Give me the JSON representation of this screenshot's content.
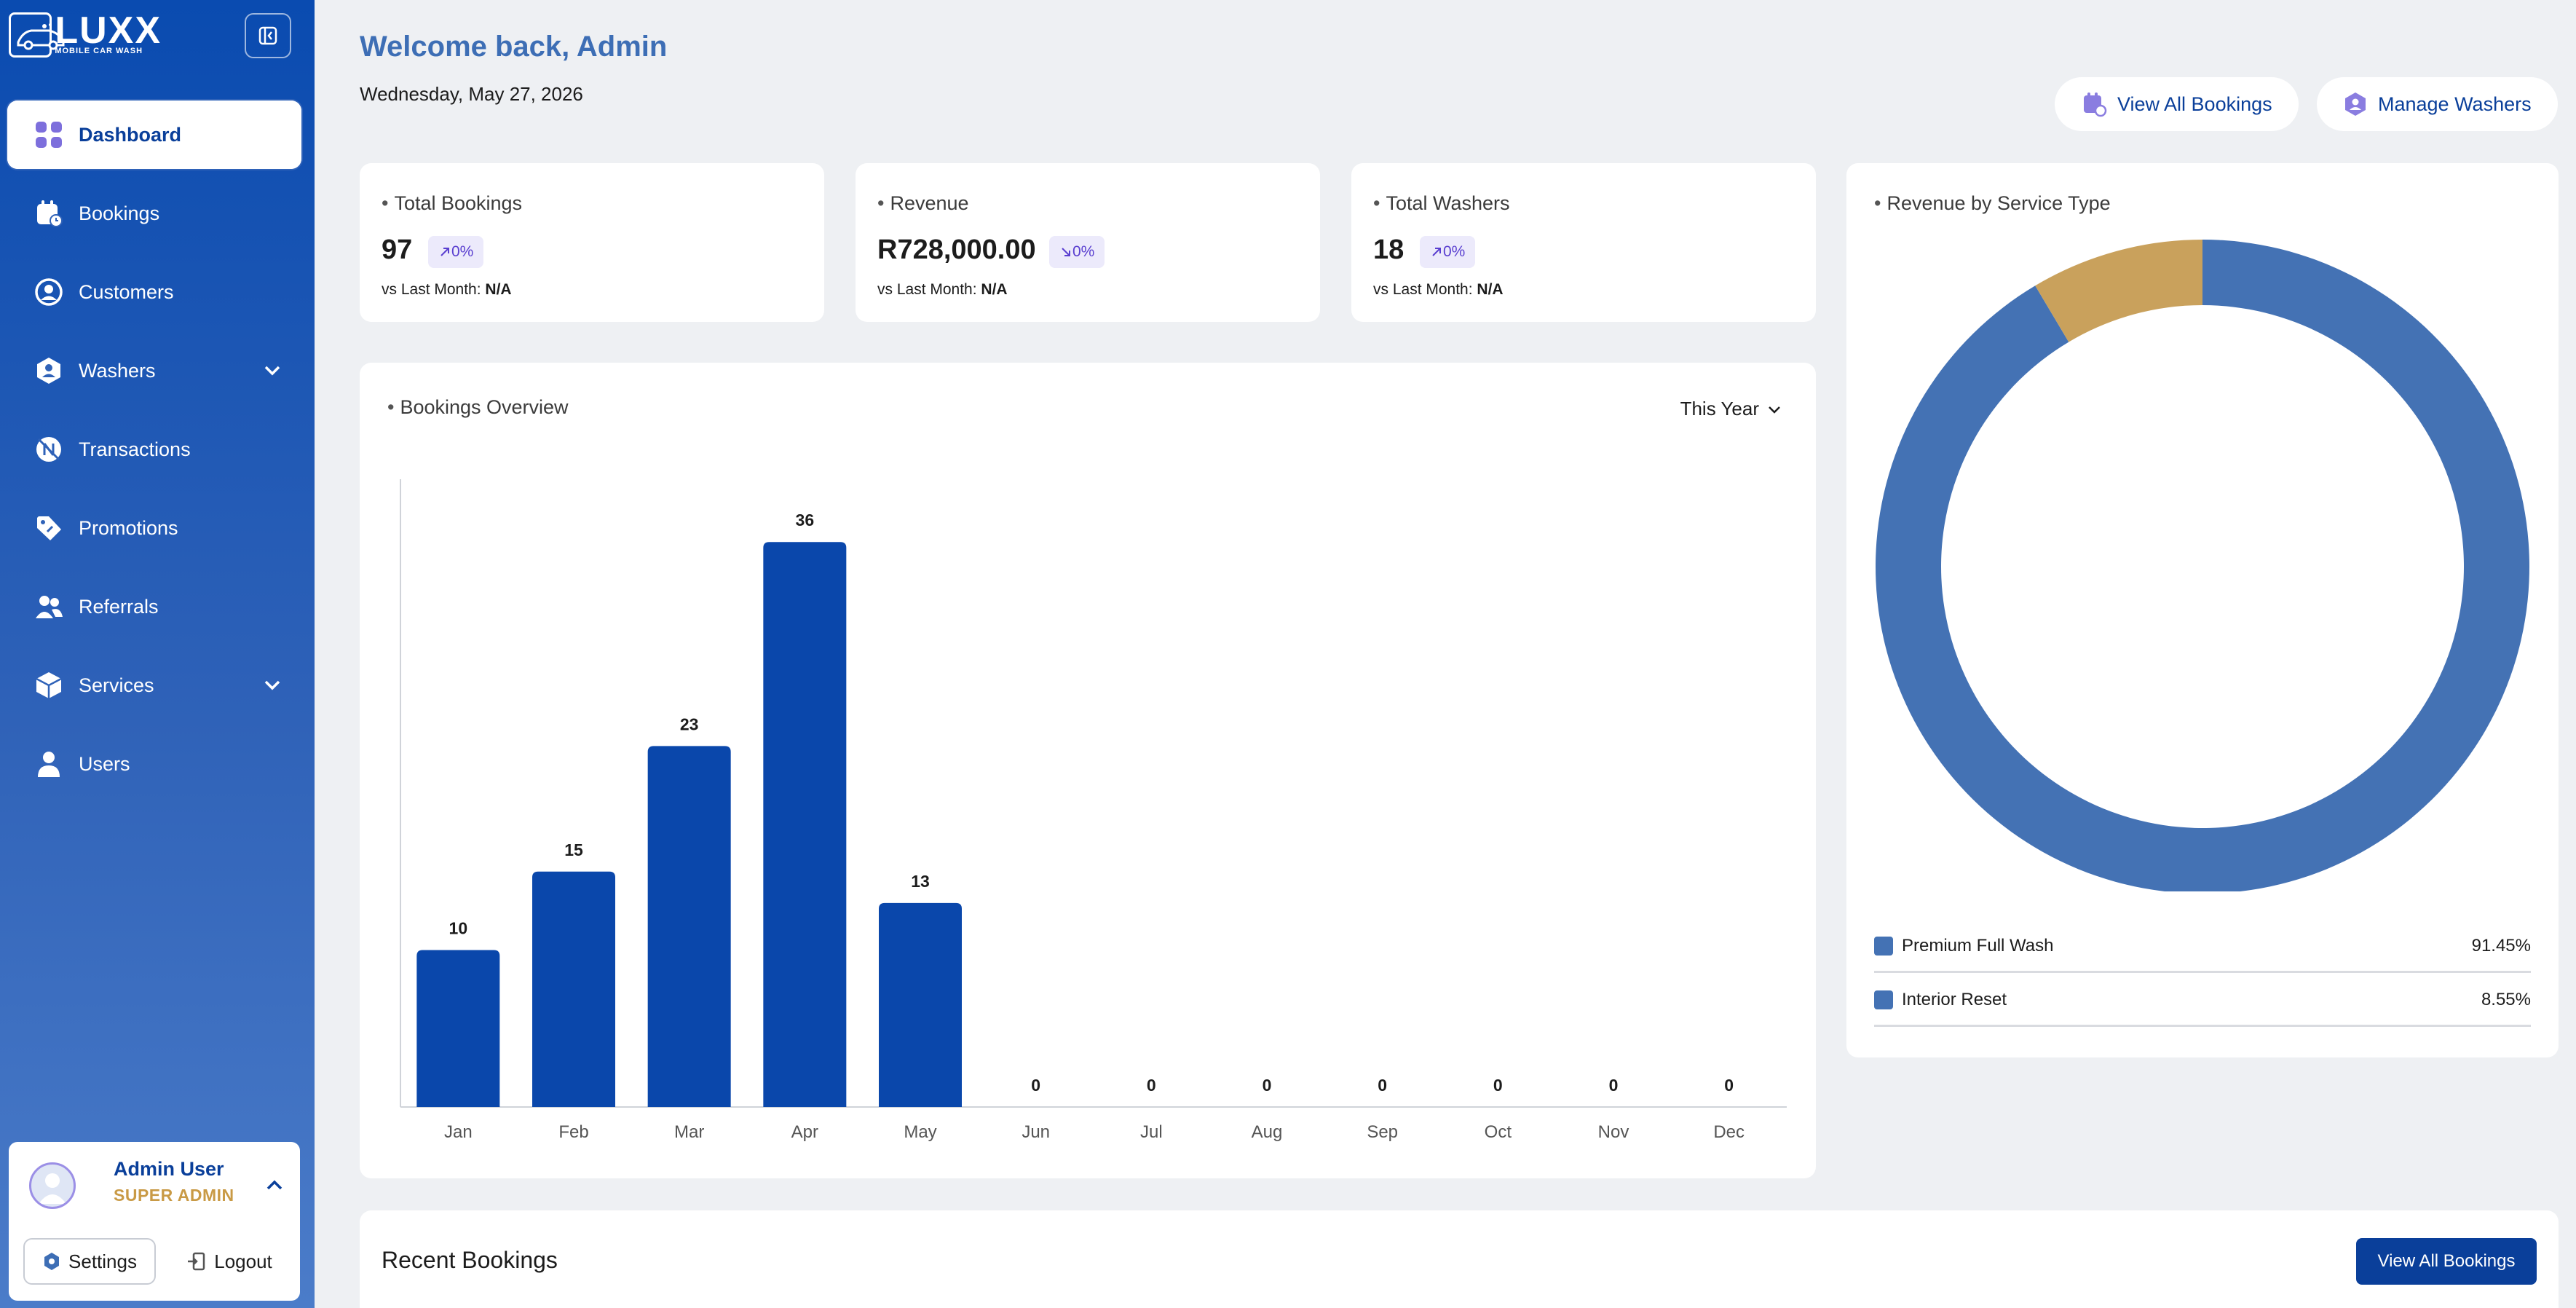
{
  "brand": {
    "logo_big": "LUXX",
    "logo_small": "MOBILE CAR WASH"
  },
  "sidebar": {
    "items": [
      {
        "label": "Dashboard",
        "icon": "dashboard-icon",
        "active": true
      },
      {
        "label": "Bookings",
        "icon": "calendar-icon"
      },
      {
        "label": "Customers",
        "icon": "user-circle-icon"
      },
      {
        "label": "Washers",
        "icon": "washer-badge-icon",
        "expandable": true
      },
      {
        "label": "Transactions",
        "icon": "transactions-icon"
      },
      {
        "label": "Promotions",
        "icon": "tag-icon"
      },
      {
        "label": "Referrals",
        "icon": "users-icon"
      },
      {
        "label": "Services",
        "icon": "box-icon",
        "expandable": true
      },
      {
        "label": "Users",
        "icon": "user-icon"
      }
    ]
  },
  "user": {
    "name": "Admin User",
    "role": "SUPER ADMIN",
    "settings_label": "Settings",
    "logout_label": "Logout"
  },
  "header": {
    "welcome": "Welcome back, Admin",
    "date": "Wednesday, May 27, 2026",
    "view_all_bookings": "View All Bookings",
    "manage_washers": "Manage Washers"
  },
  "stats": [
    {
      "title": "Total Bookings",
      "value": "97",
      "change": "0%",
      "direction": "up",
      "sub_label": "vs Last Month:",
      "sub_value": "N/A"
    },
    {
      "title": "Revenue",
      "value": "R728,000.00",
      "change": "0%",
      "direction": "down",
      "sub_label": "vs Last Month:",
      "sub_value": "N/A"
    },
    {
      "title": "Total Washers",
      "value": "18",
      "change": "0%",
      "direction": "up",
      "sub_label": "vs Last Month:",
      "sub_value": "N/A"
    }
  ],
  "bookings_overview": {
    "title": "Bookings Overview",
    "period": "This Year"
  },
  "revenue_by_service": {
    "title": "Revenue by Service Type"
  },
  "recent_bookings": {
    "title": "Recent Bookings",
    "button": "View All Bookings"
  },
  "colors": {
    "primary": "#0a47ab",
    "donut_main": "#4472b4",
    "donut_secondary": "#c9a15c",
    "accent_text": "#3d6eb5",
    "role_gold": "#c99a45"
  },
  "chart_data": [
    {
      "type": "bar",
      "title": "Bookings Overview",
      "categories": [
        "Jan",
        "Feb",
        "Mar",
        "Apr",
        "May",
        "Jun",
        "Jul",
        "Aug",
        "Sep",
        "Oct",
        "Nov",
        "Dec"
      ],
      "values": [
        10,
        15,
        23,
        36,
        13,
        0,
        0,
        0,
        0,
        0,
        0,
        0
      ],
      "ylim": [
        0,
        40
      ],
      "grid": false,
      "data_labels": true
    },
    {
      "type": "pie",
      "title": "Revenue by Service Type",
      "donut": true,
      "categories": [
        "Premium Full Wash",
        "Interior Reset"
      ],
      "values": [
        91.45,
        8.55
      ],
      "labels": [
        "91.45%",
        "8.55%"
      ],
      "colors": [
        "#4472b4",
        "#c9a15c"
      ],
      "legend": "bottom"
    }
  ]
}
